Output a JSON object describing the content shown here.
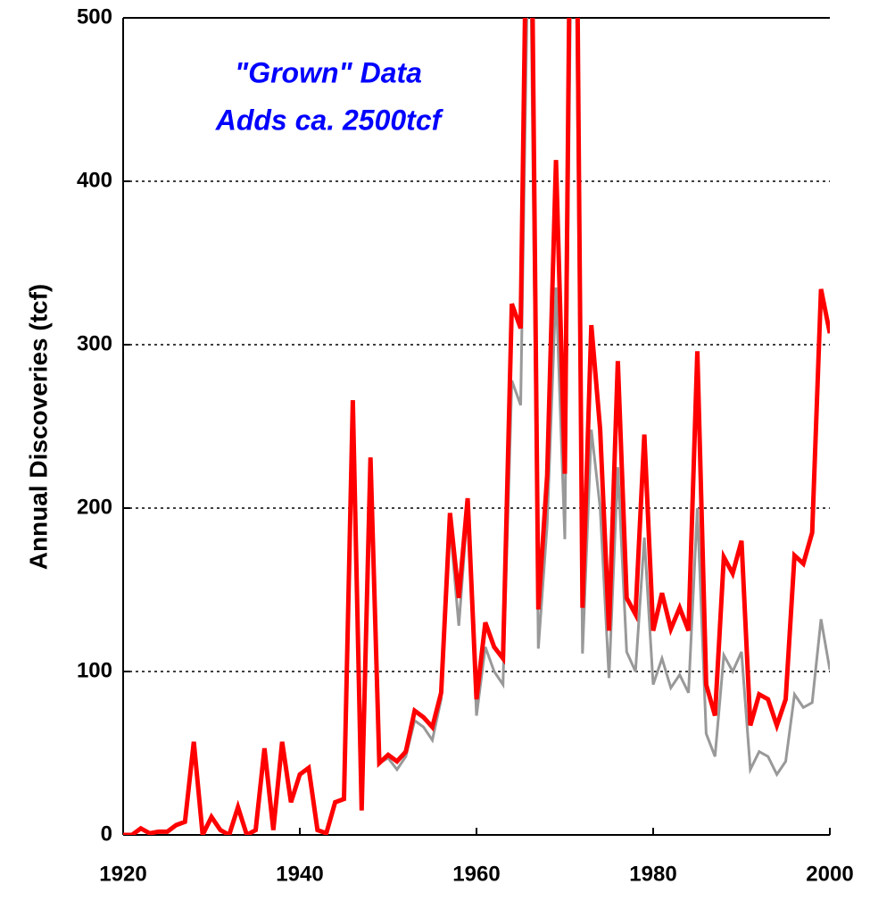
{
  "chart_data": {
    "type": "line",
    "y_label": "Annual Discoveries (tcf)",
    "annotation": [
      "\"Grown\" Data",
      "Adds ca. 2500tcf"
    ],
    "annotation_color": "#0000ff",
    "x": [
      1920,
      1921,
      1922,
      1923,
      1924,
      1925,
      1926,
      1927,
      1928,
      1929,
      1930,
      1931,
      1932,
      1933,
      1934,
      1935,
      1936,
      1937,
      1938,
      1939,
      1940,
      1941,
      1942,
      1943,
      1944,
      1945,
      1946,
      1947,
      1948,
      1949,
      1950,
      1951,
      1952,
      1953,
      1954,
      1955,
      1956,
      1957,
      1958,
      1959,
      1960,
      1961,
      1962,
      1963,
      1964,
      1965,
      1966,
      1967,
      1968,
      1969,
      1970,
      1971,
      1972,
      1973,
      1974,
      1975,
      1976,
      1977,
      1978,
      1979,
      1980,
      1981,
      1982,
      1983,
      1984,
      1985,
      1986,
      1987,
      1988,
      1989,
      1990,
      1991,
      1992,
      1993,
      1994,
      1995,
      1996,
      1997,
      1998,
      1999,
      2000
    ],
    "series": [
      {
        "color": "#999999",
        "width": 3,
        "values": [
          0,
          0,
          4,
          1,
          2,
          2,
          6,
          8,
          57,
          0,
          11,
          3,
          0,
          17,
          0,
          3,
          53,
          3,
          57,
          20,
          37,
          41,
          3,
          1,
          20,
          22,
          266,
          15,
          231,
          44,
          47,
          40,
          48,
          70,
          66,
          58,
          83,
          190,
          128,
          200,
          73,
          115,
          100,
          92,
          278,
          263,
          600,
          114,
          190,
          335,
          181,
          700,
          111,
          248,
          200,
          96,
          225,
          112,
          100,
          182,
          92,
          108,
          90,
          98,
          87,
          200,
          62,
          48,
          110,
          100,
          112,
          40,
          51,
          48,
          37,
          45,
          86,
          78,
          81,
          132,
          101
        ]
      },
      {
        "color": "#ff0000",
        "width": 5,
        "values": [
          0,
          0,
          4,
          1,
          2,
          2,
          6,
          8,
          57,
          0,
          11,
          3,
          0,
          17,
          0,
          3,
          53,
          3,
          57,
          20,
          37,
          41,
          3,
          1,
          20,
          22,
          266,
          15,
          231,
          44,
          49,
          45,
          51,
          76,
          72,
          66,
          87,
          197,
          145,
          206,
          83,
          130,
          115,
          108,
          325,
          310,
          700,
          138,
          220,
          413,
          221,
          800,
          139,
          312,
          248,
          125,
          290,
          145,
          135,
          245,
          125,
          148,
          126,
          139,
          125,
          296,
          92,
          73,
          170,
          160,
          180,
          67,
          86,
          83,
          67,
          83,
          171,
          166,
          185,
          334,
          307
        ]
      }
    ],
    "xlim": [
      1920,
      2000
    ],
    "xticks": [
      1920,
      1940,
      1960,
      1980,
      2000
    ],
    "ylim": [
      0,
      500
    ],
    "yticks": [
      0,
      100,
      200,
      300,
      400,
      500
    ],
    "grid": true
  }
}
